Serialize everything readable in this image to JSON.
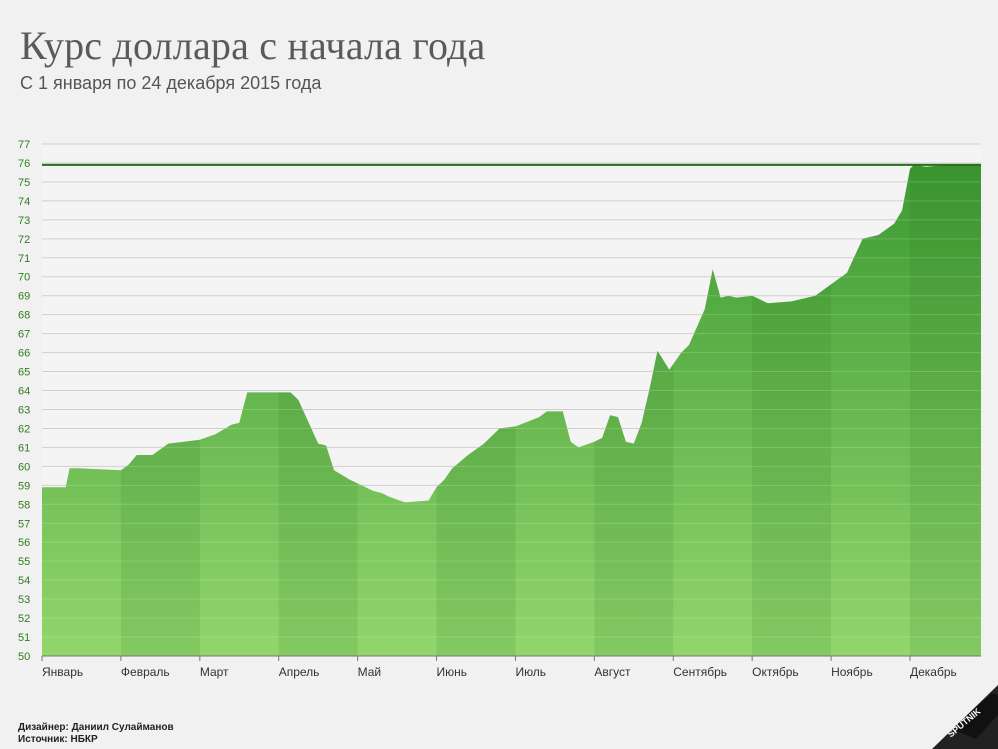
{
  "header": {
    "title": "Курс доллара с начала года",
    "subtitle": "С 1 января по 24 декабря 2015 года"
  },
  "credits": {
    "designer": "Дизайнер: Даниил Сулайманов",
    "source": "Источник: НБКР"
  },
  "logo": {
    "text": "SPUTNIK"
  },
  "colors": {
    "accent": "#2e8b22",
    "fill_light": "#8fd36a",
    "fill_dark": "#3c9a2e",
    "line": "#2a6e1a"
  },
  "chart_data": {
    "type": "area",
    "xlabel": "",
    "ylabel": "",
    "ylim": [
      50,
      77
    ],
    "y_ticks": [
      50,
      51,
      52,
      53,
      54,
      55,
      56,
      57,
      58,
      59,
      60,
      61,
      62,
      63,
      64,
      65,
      66,
      67,
      68,
      69,
      70,
      71,
      72,
      73,
      74,
      75,
      76,
      77
    ],
    "x_ticks": [
      "Январь",
      "Февраль",
      "Март",
      "Апрель",
      "Май",
      "Июнь",
      "Июль",
      "Август",
      "Сентябрь",
      "Октябрь",
      "Ноябрь",
      "Декабрь"
    ],
    "x_range": [
      0,
      11.9
    ],
    "reference_line": 75.9,
    "grid": true,
    "series": [
      {
        "x": [
          0.0,
          0.3,
          0.35,
          0.45,
          1.0,
          1.1,
          1.2,
          1.4,
          1.6,
          1.8,
          2.0,
          2.2,
          2.4,
          2.5,
          2.6,
          2.75,
          2.95,
          3.15,
          3.25,
          3.5,
          3.6,
          3.7,
          3.9,
          4.2,
          4.3,
          4.4,
          4.6,
          4.9,
          5.0,
          5.1,
          5.2,
          5.4,
          5.6,
          5.8,
          6.0,
          6.3,
          6.4,
          6.6,
          6.7,
          6.8,
          7.0,
          7.1,
          7.2,
          7.3,
          7.4,
          7.5,
          7.6,
          7.7,
          7.8,
          7.95,
          8.1,
          8.2,
          8.4,
          8.5,
          8.6,
          8.7,
          8.8,
          9.0,
          9.2,
          9.5,
          9.8,
          10.0,
          10.2,
          10.4,
          10.6,
          10.8,
          10.9,
          11.0,
          11.05,
          11.2,
          11.5,
          11.9
        ],
        "y": [
          58.9,
          58.9,
          59.9,
          59.9,
          59.8,
          60.1,
          60.6,
          60.6,
          61.2,
          61.3,
          61.4,
          61.7,
          62.2,
          62.3,
          63.9,
          63.9,
          63.9,
          63.9,
          63.5,
          61.2,
          61.1,
          59.8,
          59.3,
          58.7,
          58.6,
          58.4,
          58.1,
          58.2,
          58.9,
          59.3,
          59.9,
          60.6,
          61.2,
          62.0,
          62.1,
          62.6,
          62.9,
          62.9,
          61.3,
          61.0,
          61.3,
          61.5,
          62.7,
          62.6,
          61.3,
          61.2,
          62.3,
          64.1,
          66.1,
          65.1,
          66.0,
          66.4,
          68.3,
          70.4,
          68.9,
          69.0,
          68.9,
          69.0,
          68.6,
          68.7,
          69.0,
          69.6,
          70.2,
          72.0,
          72.2,
          72.8,
          73.5,
          75.7,
          75.9,
          75.8,
          75.9,
          75.9
        ]
      }
    ]
  }
}
